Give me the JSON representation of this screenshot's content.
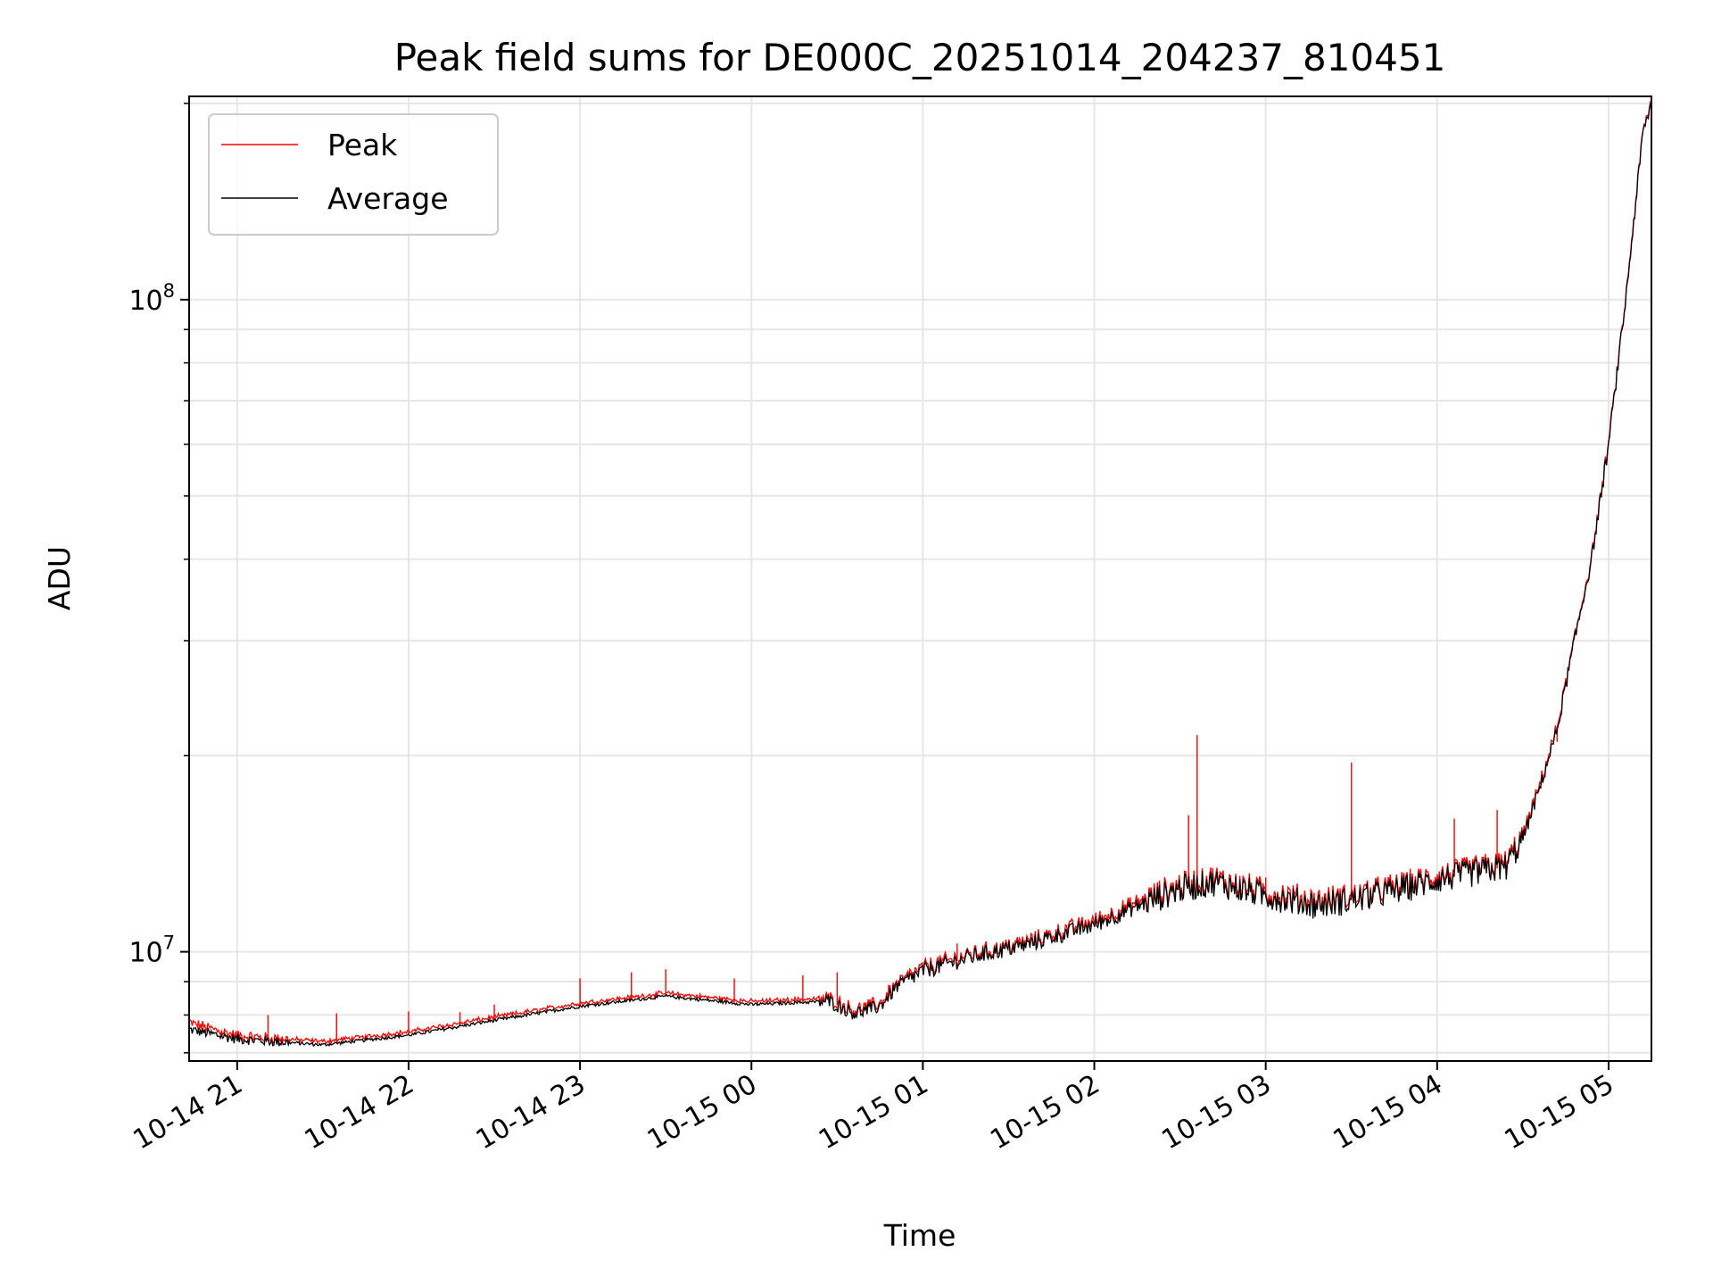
{
  "chart_data": {
    "type": "line",
    "title": "Peak field sums for DE000C_20251014_204237_810451",
    "xlabel": "Time",
    "ylabel": "ADU",
    "yscale": "log",
    "ylim": [
      6800000,
      205000000
    ],
    "xlim_hours": [
      -0.28,
      8.25
    ],
    "x_ticks": [
      {
        "hour": 0,
        "label": "10-14 21"
      },
      {
        "hour": 1,
        "label": "10-14 22"
      },
      {
        "hour": 2,
        "label": "10-14 23"
      },
      {
        "hour": 3,
        "label": "10-15 00"
      },
      {
        "hour": 4,
        "label": "10-15 01"
      },
      {
        "hour": 5,
        "label": "10-15 02"
      },
      {
        "hour": 6,
        "label": "10-15 03"
      },
      {
        "hour": 7,
        "label": "10-15 04"
      },
      {
        "hour": 8,
        "label": "10-15 05"
      }
    ],
    "y_major_ticks": [
      {
        "value": 10000000,
        "base": "10",
        "exp": "7"
      },
      {
        "value": 100000000,
        "base": "10",
        "exp": "8"
      }
    ],
    "y_minor_ticks": [
      7000000,
      8000000,
      9000000,
      20000000,
      30000000,
      40000000,
      50000000,
      60000000,
      70000000,
      80000000,
      90000000,
      200000000
    ],
    "grid": true,
    "legend_position": "upper-left",
    "series": [
      {
        "name": "Peak",
        "color": "#ff0000",
        "points": [
          [
            -0.28,
            7750000.0
          ],
          [
            0.0,
            7400000.0
          ],
          [
            0.5,
            7250000.0
          ],
          [
            1.0,
            7500000.0
          ],
          [
            1.5,
            7900000.0
          ],
          [
            2.0,
            8300000.0
          ],
          [
            2.5,
            8600000.0
          ],
          [
            3.0,
            8350000.0
          ],
          [
            3.45,
            8450000.0
          ],
          [
            3.6,
            8100000.0
          ],
          [
            3.75,
            8300000.0
          ],
          [
            3.85,
            8900000.0
          ],
          [
            4.0,
            9400000.0
          ],
          [
            4.3,
            9900000.0
          ],
          [
            4.6,
            10300000.0
          ],
          [
            5.0,
            11100000.0
          ],
          [
            5.3,
            12000000.0
          ],
          [
            5.5,
            12600000.0
          ],
          [
            5.7,
            12900000.0
          ],
          [
            6.0,
            12300000.0
          ],
          [
            6.3,
            11900000.0
          ],
          [
            6.5,
            12100000.0
          ],
          [
            6.8,
            12600000.0
          ],
          [
            7.0,
            13000000.0
          ],
          [
            7.2,
            13300000.0
          ],
          [
            7.4,
            13600000.0
          ],
          [
            7.5,
            15000000.0
          ],
          [
            7.6,
            18000000.0
          ],
          [
            7.7,
            22000000.0
          ],
          [
            7.8,
            30000000.0
          ],
          [
            7.9,
            40000000.0
          ],
          [
            8.0,
            60000000.0
          ],
          [
            8.1,
            100000000.0
          ],
          [
            8.2,
            180000000.0
          ],
          [
            8.25,
            200000000.0
          ]
        ],
        "spikes": [
          [
            -0.28,
            8150000.0
          ],
          [
            0.18,
            8000000.0
          ],
          [
            0.58,
            8050000.0
          ],
          [
            1.0,
            8100000.0
          ],
          [
            1.3,
            8080000.0
          ],
          [
            1.5,
            8300000.0
          ],
          [
            2.0,
            9100000.0
          ],
          [
            2.3,
            9300000.0
          ],
          [
            2.5,
            9400000.0
          ],
          [
            2.9,
            9100000.0
          ],
          [
            3.3,
            9200000.0
          ],
          [
            3.5,
            9300000.0
          ],
          [
            3.8,
            8900000.0
          ],
          [
            4.2,
            10300000.0
          ],
          [
            5.55,
            16200000.0
          ],
          [
            5.6,
            21500000.0
          ],
          [
            6.0,
            13000000.0
          ],
          [
            6.5,
            19500000.0
          ],
          [
            7.1,
            16000000.0
          ],
          [
            7.35,
            16500000.0
          ],
          [
            7.7,
            21000000.0
          ]
        ]
      },
      {
        "name": "Average",
        "color": "#000000",
        "points": [
          [
            -0.28,
            7600000.0
          ],
          [
            0.0,
            7350000.0
          ],
          [
            0.5,
            7200000.0
          ],
          [
            1.0,
            7450000.0
          ],
          [
            1.5,
            7850000.0
          ],
          [
            2.0,
            8250000.0
          ],
          [
            2.5,
            8550000.0
          ],
          [
            3.0,
            8300000.0
          ],
          [
            3.45,
            8400000.0
          ],
          [
            3.6,
            8050000.0
          ],
          [
            3.75,
            8250000.0
          ],
          [
            3.85,
            8850000.0
          ],
          [
            4.0,
            9350000.0
          ],
          [
            4.3,
            9850000.0
          ],
          [
            4.6,
            10250000.0
          ],
          [
            5.0,
            11000000.0
          ],
          [
            5.3,
            11900000.0
          ],
          [
            5.5,
            12500000.0
          ],
          [
            5.7,
            12800000.0
          ],
          [
            6.0,
            12200000.0
          ],
          [
            6.3,
            11800000.0
          ],
          [
            6.5,
            12000000.0
          ],
          [
            6.8,
            12500000.0
          ],
          [
            7.0,
            12900000.0
          ],
          [
            7.2,
            13200000.0
          ],
          [
            7.4,
            13500000.0
          ],
          [
            7.5,
            14900000.0
          ],
          [
            7.6,
            17900000.0
          ],
          [
            7.7,
            21900000.0
          ],
          [
            7.8,
            29900000.0
          ],
          [
            7.9,
            39900000.0
          ],
          [
            8.0,
            59900000.0
          ],
          [
            8.1,
            99900000.0
          ],
          [
            8.2,
            179900000.0
          ],
          [
            8.25,
            200000000.0
          ]
        ]
      }
    ]
  }
}
